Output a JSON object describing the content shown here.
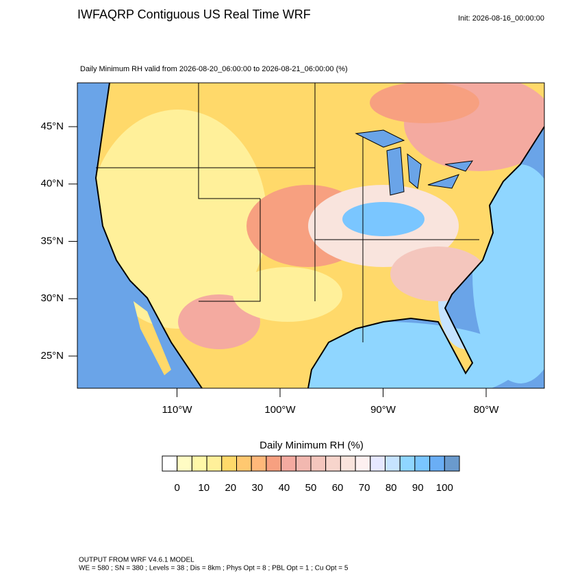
{
  "title": "IWFAQRP Contiguous US Real Time WRF",
  "init": "Init: 2026-08-16_00:00:00",
  "subtitle": "Daily Minimum RH valid from 2026-08-20_06:00:00 to 2026-08-21_06:00:00   (%)",
  "lat_ticks": [
    {
      "value": 45,
      "label": "45°N"
    },
    {
      "value": 40,
      "label": "40°N"
    },
    {
      "value": 35,
      "label": "35°N"
    },
    {
      "value": 30,
      "label": "30°N"
    },
    {
      "value": 25,
      "label": "25°N"
    }
  ],
  "lon_ticks": [
    {
      "value": -110,
      "label": "110°W"
    },
    {
      "value": -100,
      "label": "100°W"
    },
    {
      "value": -90,
      "label": "90°W"
    },
    {
      "value": -80,
      "label": "80°W"
    }
  ],
  "colorbar": {
    "title": "Daily Minimum RH  (%)",
    "colors": [
      "#ffffff",
      "#fffcc4",
      "#fff8a8",
      "#fff09a",
      "#ffd96a",
      "#ffc870",
      "#ffb87a",
      "#f7a080",
      "#f4aaa0",
      "#f2b8b0",
      "#f4c6bd",
      "#f7d5cc",
      "#f9e4dd",
      "#fdf0f0",
      "#e6e8ff",
      "#c6e3ff",
      "#8fd6ff",
      "#7ac6ff",
      "#6aaef5",
      "#6a9acd"
    ],
    "ticks": [
      0,
      10,
      20,
      30,
      40,
      50,
      60,
      70,
      80,
      90,
      100
    ]
  },
  "footer": [
    "OUTPUT FROM WRF V4.6.1 MODEL",
    "WE = 580 ; SN = 380 ; Levels = 38 ; Dis = 8km ; Phys Opt = 8 ; PBL Opt = 1 ; Cu Opt = 5"
  ]
}
